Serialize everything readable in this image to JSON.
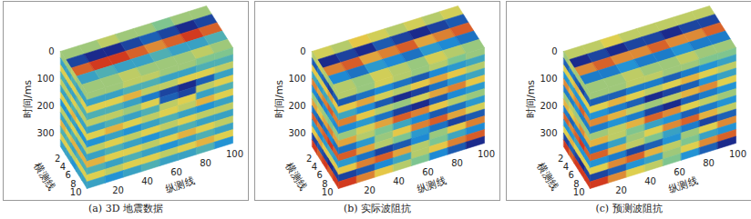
{
  "chart_data": [
    {
      "type": "heatmap",
      "title": "(a) 3D 地震数据",
      "x_label": "纵测线",
      "y_label": "横测线",
      "z_label": "时间/ms",
      "xlim": [
        0,
        100
      ],
      "xticks": [
        20,
        40,
        60,
        80,
        100
      ],
      "ylim": [
        0,
        10
      ],
      "yticks": [
        2,
        4,
        6,
        8,
        10
      ],
      "zlim": [
        0,
        350
      ],
      "zticks": [
        0,
        100,
        200,
        300
      ],
      "cells": {
        "inline_time": [
          [
            0.1,
            0.1,
            0.2,
            0.2,
            0.1,
            0.1,
            0.0,
            0.0
          ],
          [
            -0.3,
            -0.3,
            -0.2,
            -0.2,
            -0.3,
            -0.3,
            -0.2,
            -0.2
          ],
          [
            0.3,
            0.3,
            0.4,
            0.2,
            0.2,
            0.3,
            0.3,
            0.2
          ],
          [
            -0.2,
            -0.2,
            -0.3,
            -0.5,
            -0.7,
            -0.8,
            -0.6,
            -0.3
          ],
          [
            0.2,
            0.2,
            0.1,
            0.3,
            -0.6,
            -0.7,
            0.2,
            0.3
          ],
          [
            -0.3,
            -0.2,
            -0.3,
            -0.2,
            0.2,
            0.3,
            -0.3,
            -0.2
          ],
          [
            0.3,
            0.4,
            0.3,
            0.2,
            0.3,
            0.2,
            0.4,
            0.3
          ],
          [
            -0.4,
            -0.3,
            -0.4,
            -0.3,
            -0.2,
            -0.3,
            -0.4,
            -0.3
          ],
          [
            0.2,
            0.3,
            0.2,
            0.3,
            0.2,
            0.3,
            0.2,
            0.2
          ],
          [
            -0.3,
            -0.2,
            -0.3,
            -0.4,
            -0.3,
            -0.2,
            -0.3,
            -0.3
          ],
          [
            0.4,
            0.3,
            0.3,
            0.2,
            0.3,
            0.4,
            0.3,
            0.2
          ],
          [
            -0.2,
            -0.3,
            -0.2,
            -0.3,
            -0.4,
            -0.3,
            -0.2,
            -0.3
          ],
          [
            0.3,
            0.2,
            0.3,
            0.3,
            0.2,
            0.3,
            0.4,
            0.3
          ],
          [
            -0.3,
            -0.4,
            -0.3,
            -0.2,
            -0.3,
            -0.3,
            -0.2,
            -0.4
          ]
        ],
        "crossline_time": [
          [
            0.1,
            0.1,
            0.2,
            0.1,
            0.1
          ],
          [
            -0.3,
            -0.3,
            -0.2,
            -0.3,
            -0.3
          ],
          [
            0.3,
            0.3,
            0.3,
            0.2,
            0.3
          ],
          [
            -0.2,
            -0.3,
            -0.3,
            -0.2,
            -0.2
          ],
          [
            0.2,
            0.2,
            0.3,
            0.2,
            0.2
          ],
          [
            -0.3,
            -0.3,
            -0.2,
            -0.3,
            -0.3
          ],
          [
            0.3,
            0.3,
            0.4,
            0.3,
            0.3
          ],
          [
            -0.4,
            -0.4,
            -0.3,
            -0.4,
            -0.4
          ],
          [
            0.2,
            0.2,
            0.3,
            0.2,
            0.2
          ],
          [
            -0.3,
            -0.3,
            -0.2,
            -0.3,
            -0.3
          ],
          [
            0.4,
            0.3,
            0.4,
            0.4,
            0.4
          ],
          [
            -0.2,
            -0.2,
            -0.3,
            -0.2,
            -0.2
          ],
          [
            0.3,
            0.3,
            0.2,
            0.3,
            0.3
          ],
          [
            -0.3,
            -0.3,
            -0.4,
            -0.3,
            -0.3
          ]
        ],
        "crossline_inline": [
          [
            0.1,
            0.1,
            0.2,
            0.1,
            0.1,
            0.0,
            0.1,
            0.1
          ],
          [
            -0.7,
            -0.8,
            -0.8,
            -0.7,
            -0.6,
            -0.7,
            -0.8,
            -0.7
          ],
          [
            0.6,
            0.7,
            0.7,
            0.6,
            0.5,
            0.6,
            0.7,
            0.6
          ],
          [
            -0.3,
            -0.2,
            -0.3,
            -0.3,
            -0.2,
            -0.3,
            -0.3,
            -0.2
          ],
          [
            0.1,
            0.1,
            0.2,
            0.1,
            0.1,
            0.1,
            0.2,
            0.1
          ]
        ]
      }
    },
    {
      "type": "heatmap",
      "title": "(b) 实际波阻抗",
      "x_label": "纵测线",
      "y_label": "横测线",
      "z_label": "时间/ms",
      "xlim": [
        0,
        100
      ],
      "xticks": [
        20,
        40,
        60,
        80,
        100
      ],
      "ylim": [
        0,
        10
      ],
      "yticks": [
        2,
        4,
        6,
        8,
        10
      ],
      "zlim": [
        0,
        350
      ],
      "zticks": [
        0,
        100,
        200,
        300
      ],
      "cells": {
        "inline_time": [
          [
            0.3,
            0.2,
            0.4,
            0.3,
            0.2,
            0.3,
            0.1,
            0.2
          ],
          [
            -0.6,
            -0.5,
            -0.4,
            -0.5,
            -0.6,
            -0.4,
            -0.3,
            -0.2
          ],
          [
            0.5,
            0.6,
            0.4,
            0.3,
            0.5,
            0.6,
            0.5,
            0.3
          ],
          [
            -0.2,
            -0.4,
            -0.6,
            -0.8,
            -0.7,
            -0.5,
            -0.3,
            -0.2
          ],
          [
            0.7,
            0.5,
            0.3,
            0.2,
            0.4,
            0.6,
            0.7,
            0.5
          ],
          [
            -0.4,
            -0.3,
            -0.5,
            -0.7,
            -0.8,
            -0.6,
            -0.4,
            -0.3
          ],
          [
            0.2,
            0.4,
            0.6,
            0.8,
            0.7,
            0.5,
            0.3,
            0.2
          ],
          [
            0.6,
            0.3,
            0.1,
            -0.2,
            -0.4,
            -0.6,
            -0.5,
            -0.3
          ],
          [
            -0.5,
            -0.3,
            0.2,
            0.5,
            0.7,
            0.8,
            0.6,
            0.4
          ],
          [
            0.8,
            0.6,
            0.3,
            0.1,
            -0.3,
            -0.5,
            -0.7,
            -0.6
          ],
          [
            -0.3,
            -0.5,
            -0.7,
            -0.6,
            -0.4,
            0.2,
            0.5,
            0.7
          ],
          [
            0.5,
            0.7,
            0.8,
            0.6,
            0.3,
            0.1,
            -0.2,
            -0.4
          ],
          [
            -0.7,
            -0.6,
            -0.4,
            -0.2,
            0.3,
            0.5,
            0.7,
            0.8
          ],
          [
            0.9,
            0.7,
            0.5,
            0.3,
            0.1,
            -0.4,
            -0.6,
            -0.8
          ]
        ],
        "crossline_time": [
          [
            0.3,
            0.4,
            0.3,
            0.2,
            0.3
          ],
          [
            -0.6,
            -0.5,
            -0.6,
            -0.7,
            -0.6
          ],
          [
            0.5,
            0.4,
            0.5,
            0.6,
            0.5
          ],
          [
            -0.2,
            -0.3,
            -0.2,
            -0.1,
            -0.2
          ],
          [
            0.7,
            0.6,
            0.7,
            0.8,
            0.7
          ],
          [
            -0.4,
            -0.5,
            -0.4,
            -0.3,
            -0.4
          ],
          [
            0.2,
            0.3,
            0.2,
            0.1,
            0.2
          ],
          [
            0.6,
            0.5,
            0.6,
            0.7,
            0.6
          ],
          [
            -0.5,
            -0.6,
            -0.5,
            -0.4,
            -0.5
          ],
          [
            0.8,
            0.7,
            0.8,
            0.9,
            0.8
          ],
          [
            -0.3,
            -0.4,
            -0.3,
            -0.2,
            -0.3
          ],
          [
            0.5,
            0.6,
            0.5,
            0.4,
            0.5
          ],
          [
            -0.7,
            -0.6,
            -0.7,
            -0.8,
            -0.7
          ],
          [
            0.9,
            0.8,
            0.9,
            0.8,
            0.9
          ]
        ],
        "crossline_inline": [
          [
            0.4,
            0.3,
            0.5,
            0.4,
            0.3,
            0.4,
            0.3,
            0.4
          ],
          [
            -0.8,
            -0.7,
            -0.8,
            -0.6,
            -0.7,
            -0.8,
            -0.7,
            -0.6
          ],
          [
            0.7,
            0.8,
            0.6,
            0.7,
            0.8,
            0.6,
            0.7,
            0.8
          ],
          [
            -0.4,
            -0.5,
            -0.3,
            -0.4,
            -0.5,
            -0.3,
            -0.4,
            -0.5
          ],
          [
            0.3,
            0.2,
            0.4,
            0.3,
            0.2,
            0.4,
            0.3,
            0.2
          ]
        ]
      }
    },
    {
      "type": "heatmap",
      "title": "(c) 预测波阻抗",
      "x_label": "纵测线",
      "y_label": "横测线",
      "z_label": "时间/ms",
      "xlim": [
        0,
        100
      ],
      "xticks": [
        20,
        40,
        60,
        80,
        100
      ],
      "ylim": [
        0,
        10
      ],
      "yticks": [
        2,
        4,
        6,
        8,
        10
      ],
      "zlim": [
        0,
        350
      ],
      "zticks": [
        0,
        100,
        200,
        300
      ],
      "cells": {
        "inline_time": [
          [
            0.2,
            0.2,
            0.3,
            0.3,
            0.2,
            0.2,
            0.1,
            0.1
          ],
          [
            -0.5,
            -0.5,
            -0.4,
            -0.4,
            -0.5,
            -0.4,
            -0.3,
            -0.2
          ],
          [
            0.4,
            0.5,
            0.4,
            0.3,
            0.4,
            0.5,
            0.4,
            0.3
          ],
          [
            -0.3,
            -0.4,
            -0.5,
            -0.7,
            -0.6,
            -0.5,
            -0.3,
            -0.2
          ],
          [
            0.6,
            0.5,
            0.3,
            0.2,
            0.3,
            0.5,
            0.6,
            0.4
          ],
          [
            -0.4,
            -0.3,
            -0.4,
            -0.6,
            -0.7,
            -0.5,
            -0.4,
            -0.3
          ],
          [
            0.2,
            0.3,
            0.5,
            0.7,
            0.6,
            0.4,
            0.3,
            0.2
          ],
          [
            0.5,
            0.3,
            0.1,
            -0.2,
            -0.3,
            -0.5,
            -0.4,
            -0.3
          ],
          [
            -0.4,
            -0.2,
            0.2,
            0.4,
            0.6,
            0.7,
            0.5,
            0.3
          ],
          [
            0.7,
            0.5,
            0.3,
            0.1,
            -0.2,
            -0.4,
            -0.6,
            -0.5
          ],
          [
            -0.3,
            -0.4,
            -0.6,
            -0.5,
            -0.3,
            0.2,
            0.4,
            0.6
          ],
          [
            0.4,
            0.6,
            0.7,
            0.5,
            0.3,
            0.1,
            -0.2,
            -0.3
          ],
          [
            -0.6,
            -0.5,
            -0.3,
            -0.2,
            0.2,
            0.4,
            0.6,
            0.7
          ],
          [
            0.8,
            0.6,
            0.4,
            0.3,
            0.1,
            -0.3,
            -0.5,
            -0.7
          ]
        ],
        "crossline_time": [
          [
            0.2,
            0.3,
            0.2,
            0.2,
            0.2
          ],
          [
            -0.5,
            -0.4,
            -0.5,
            -0.6,
            -0.5
          ],
          [
            0.4,
            0.4,
            0.5,
            0.4,
            0.4
          ],
          [
            -0.3,
            -0.2,
            -0.3,
            -0.3,
            -0.3
          ],
          [
            0.6,
            0.5,
            0.6,
            0.7,
            0.6
          ],
          [
            -0.4,
            -0.4,
            -0.3,
            -0.4,
            -0.4
          ],
          [
            0.2,
            0.3,
            0.2,
            0.2,
            0.2
          ],
          [
            0.5,
            0.4,
            0.5,
            0.6,
            0.5
          ],
          [
            -0.4,
            -0.5,
            -0.4,
            -0.4,
            -0.4
          ],
          [
            0.7,
            0.6,
            0.7,
            0.8,
            0.7
          ],
          [
            -0.3,
            -0.3,
            -0.2,
            -0.3,
            -0.3
          ],
          [
            0.4,
            0.5,
            0.4,
            0.4,
            0.4
          ],
          [
            -0.6,
            -0.5,
            -0.6,
            -0.7,
            -0.6
          ],
          [
            0.8,
            0.7,
            0.8,
            0.8,
            0.8
          ]
        ],
        "crossline_inline": [
          [
            0.3,
            0.3,
            0.4,
            0.3,
            0.3,
            0.3,
            0.3,
            0.3
          ],
          [
            -0.7,
            -0.6,
            -0.7,
            -0.6,
            -0.6,
            -0.7,
            -0.6,
            -0.6
          ],
          [
            0.6,
            0.7,
            0.6,
            0.6,
            0.7,
            0.6,
            0.6,
            0.7
          ],
          [
            -0.4,
            -0.4,
            -0.3,
            -0.4,
            -0.4,
            -0.3,
            -0.4,
            -0.4
          ],
          [
            0.2,
            0.2,
            0.3,
            0.2,
            0.2,
            0.3,
            0.2,
            0.2
          ]
        ]
      }
    }
  ]
}
